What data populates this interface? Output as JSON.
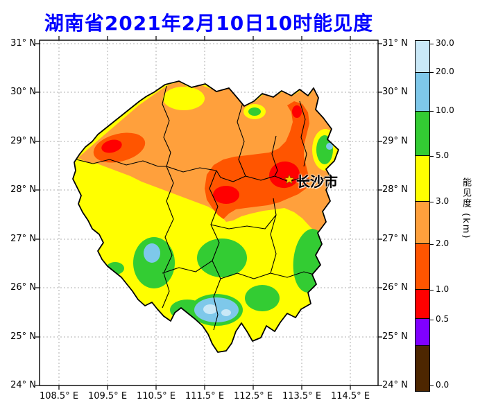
{
  "title": "湖南省2021年2月10日10时能见度",
  "title_color": "#0000ff",
  "axes": {
    "x_ticks": [
      "108.5° E",
      "109.5° E",
      "110.5° E",
      "111.5° E",
      "112.5° E",
      "113.5° E",
      "114.5° E"
    ],
    "y_ticks": [
      "31° N",
      "30° N",
      "29° N",
      "28° N",
      "27° N",
      "26° N",
      "25° N",
      "24° N"
    ]
  },
  "colorbar": {
    "label": "能见度 (km)",
    "units": "km",
    "tick_labels": [
      "30.0",
      "20.0",
      "10.0",
      "5.0",
      "3.0",
      "2.0",
      "1.0",
      "0.5",
      "0.0"
    ],
    "segments": [
      {
        "range": "> 30.0",
        "color": "#c9e8f7"
      },
      {
        "range": "20.0 - 30.0",
        "color": "#7ec8ea"
      },
      {
        "range": "10.0 - 20.0",
        "color": "#33cc33"
      },
      {
        "range": "5.0 - 10.0",
        "color": "#ffff00"
      },
      {
        "range": "3.0 - 5.0",
        "color": "#ffa03c"
      },
      {
        "range": "2.0 - 3.0",
        "color": "#ff5500"
      },
      {
        "range": "1.0 - 2.0",
        "color": "#ff0000"
      },
      {
        "range": "0.5 - 1.0",
        "color": "#8000ff"
      },
      {
        "range": "0.0 - 0.5",
        "color": "#4d2600"
      }
    ]
  },
  "map": {
    "city": {
      "label": "长沙市",
      "marker": "star",
      "marker_color": "#ffcc00"
    }
  },
  "palette": {
    "yellow": "#ffff00",
    "orange": "#ffa03c",
    "darkorange": "#ff5500",
    "red": "#ff0000",
    "green": "#33cc33",
    "lightblue": "#7ec8ea",
    "paleblue": "#c9e8f7",
    "purple": "#8000ff",
    "brown": "#4d2600",
    "grid": "#999999"
  }
}
